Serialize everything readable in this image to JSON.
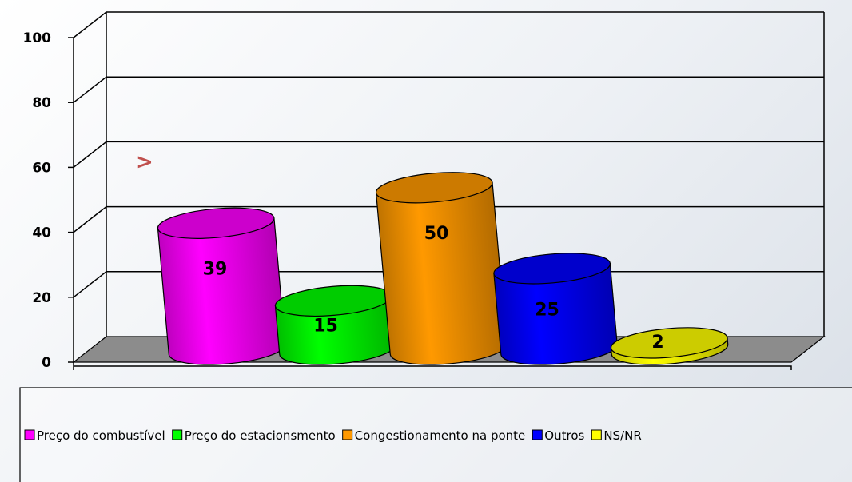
{
  "chart_data": {
    "type": "bar3d",
    "categories": [
      "Preço do combustível",
      "Preço do estacionsmento",
      "Congestionamento na ponte",
      "Outros",
      "NS/NR"
    ],
    "values": [
      39,
      15,
      50,
      25,
      2
    ],
    "colors": [
      "#ff00ff",
      "#00ff00",
      "#ff9900",
      "#0000ff",
      "#ffff00"
    ],
    "ylim": [
      0,
      100
    ],
    "yticks": [
      0,
      20,
      40,
      60,
      80,
      100
    ],
    "grid": true,
    "annotation": ">"
  }
}
